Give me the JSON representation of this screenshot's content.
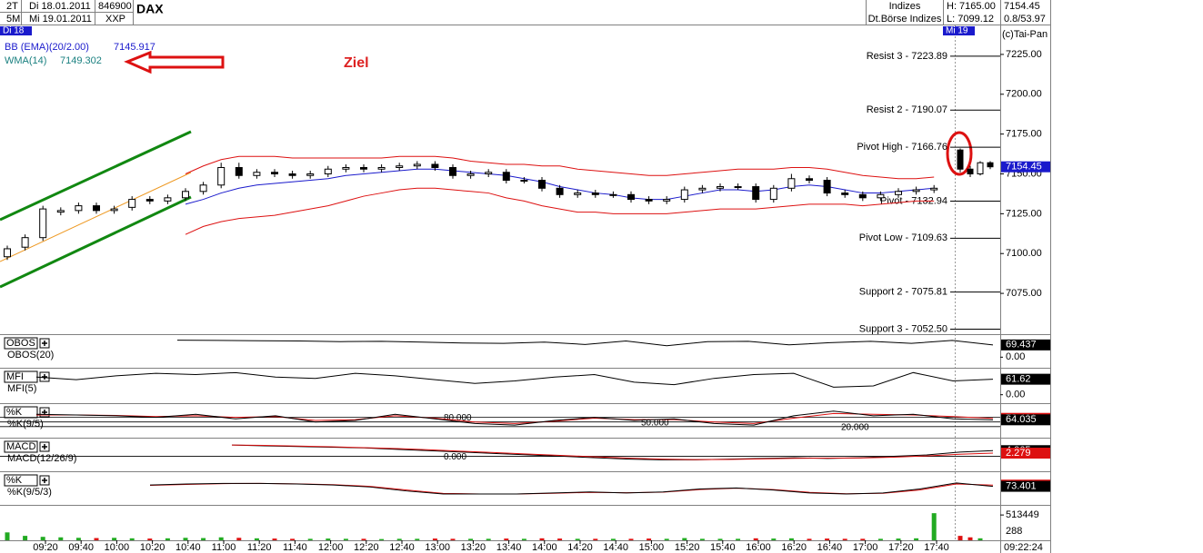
{
  "header": {
    "period": "2T",
    "interval": "5M",
    "date_from": "Di 18.01.2011",
    "date_to": "Mi 19.01.2011",
    "code": "846900",
    "exchange_code": "XXP",
    "group": "Indizes",
    "group_full": "Dt.Börse Indizes",
    "high": "H: 7165.00",
    "low": "L: 7099.12",
    "last": "7154.45",
    "change": "0.8/53.97",
    "copyright": "(c)Tai-Pan",
    "clock": "09:22:24"
  },
  "chart_data": {
    "type": "candlestick",
    "title": "DAX",
    "annotation": "Ziel",
    "legend": [
      {
        "name": "BB (EMA)(20/2.00)",
        "value": 7145.917,
        "color": "#1a1acc"
      },
      {
        "name": "WMA(14)",
        "value": 7149.302,
        "color": "#1a8080"
      }
    ],
    "ylim": [
      7049.4,
      7243.2
    ],
    "yticks": [
      {
        "value": 7225,
        "label": "7225.00"
      },
      {
        "value": 7200,
        "label": "7200.00"
      },
      {
        "value": 7175,
        "label": "7175.00"
      },
      {
        "value": 7150,
        "label": "7150.00"
      },
      {
        "value": 7125,
        "label": "7125.00"
      },
      {
        "value": 7100,
        "label": "7100.00"
      },
      {
        "value": 7075,
        "label": "7075.00"
      }
    ],
    "xticks": [
      "09:20",
      "09:40",
      "10:00",
      "10:20",
      "10:40",
      "11:00",
      "11:20",
      "11:40",
      "12:00",
      "12:20",
      "12:40",
      "13:00",
      "13:20",
      "13:40",
      "14:00",
      "14:20",
      "14:40",
      "15:00",
      "15:20",
      "15:40",
      "16:00",
      "16:20",
      "16:40",
      "17:00",
      "17:20",
      "17:40"
    ],
    "last": 7154.45,
    "last_color": "#1a1acc",
    "sessions": [
      {
        "name": "Di 18",
        "open": [
          7098,
          7104,
          7110,
          7126,
          7127,
          7130,
          7127,
          7129,
          7134,
          7133,
          7135,
          7139,
          7143,
          7154,
          7149,
          7151,
          7150,
          7149,
          7150,
          7153,
          7154,
          7153,
          7154,
          7155,
          7156,
          7154,
          7149,
          7150,
          7151,
          7146,
          7146,
          7141,
          7137,
          7138,
          7137,
          7137,
          7134,
          7133,
          7134,
          7140,
          7141,
          7142,
          7142,
          7134,
          7141,
          7147,
          7146,
          7138,
          7137,
          7135,
          7137,
          7139,
          7140
        ],
        "high": [
          7105,
          7112,
          7130,
          7129,
          7132,
          7132,
          7130,
          7136,
          7136,
          7137,
          7141,
          7145,
          7157,
          7157,
          7153,
          7153,
          7152,
          7152,
          7155,
          7156,
          7156,
          7156,
          7157,
          7158,
          7158,
          7156,
          7152,
          7153,
          7153,
          7148,
          7148,
          7143,
          7140,
          7140,
          7139,
          7139,
          7136,
          7136,
          7142,
          7143,
          7144,
          7144,
          7144,
          7143,
          7150,
          7149,
          7148,
          7140,
          7139,
          7139,
          7141,
          7142,
          7143
        ],
        "low": [
          7096,
          7102,
          7108,
          7124,
          7125,
          7125,
          7125,
          7127,
          7131,
          7131,
          7133,
          7137,
          7141,
          7147,
          7147,
          7148,
          7147,
          7147,
          7148,
          7151,
          7151,
          7151,
          7152,
          7153,
          7152,
          7147,
          7147,
          7148,
          7144,
          7144,
          7139,
          7135,
          7135,
          7135,
          7135,
          7132,
          7131,
          7131,
          7132,
          7138,
          7139,
          7140,
          7132,
          7132,
          7139,
          7144,
          7136,
          7135,
          7133,
          7133,
          7135,
          7137,
          7138
        ],
        "close": [
          7103,
          7110,
          7128,
          7127,
          7130,
          7127,
          7128,
          7134,
          7133,
          7135,
          7139,
          7143,
          7154,
          7149,
          7151,
          7150,
          7149,
          7150,
          7153,
          7154,
          7153,
          7154,
          7155,
          7156,
          7154,
          7149,
          7150,
          7151,
          7146,
          7146,
          7141,
          7137,
          7138,
          7137,
          7137,
          7134,
          7133,
          7134,
          7140,
          7141,
          7142,
          7142,
          7134,
          7141,
          7147,
          7146,
          7138,
          7137,
          7135,
          7137,
          7139,
          7140,
          7141
        ],
        "volume": [
          160000,
          90000,
          70000,
          60000,
          50000,
          45000,
          50000,
          40000,
          35000,
          40000,
          50000,
          45000,
          60000,
          50000,
          40000,
          35000,
          30000,
          30000,
          35000,
          30000,
          30000,
          25000,
          30000,
          30000,
          35000,
          30000,
          30000,
          30000,
          35000,
          30000,
          40000,
          35000,
          30000,
          30000,
          30000,
          30000,
          35000,
          30000,
          45000,
          30000,
          30000,
          30000,
          40000,
          35000,
          40000,
          30000,
          35000,
          30000,
          30000,
          30000,
          35000,
          40000,
          550000
        ]
      },
      {
        "name": "Mi 19",
        "open": [
          7165,
          7153,
          7150,
          7157
        ],
        "high": [
          7166,
          7155,
          7158,
          7158
        ],
        "low": [
          7151,
          7148,
          7149,
          7153
        ],
        "close": [
          7153,
          7150,
          7157,
          7154.45
        ],
        "volume": [
          90000,
          60000,
          40000,
          288
        ]
      }
    ],
    "overlays": [
      {
        "color": "#dd1111",
        "values": [
          null,
          null,
          null,
          null,
          null,
          null,
          null,
          null,
          null,
          null,
          7150,
          7155,
          7159,
          7161,
          7161,
          7161,
          7160,
          7160,
          7160,
          7160,
          7160,
          7160,
          7161,
          7161,
          7161,
          7160,
          7158,
          7157,
          7156,
          7156,
          7155,
          7155,
          7153,
          7152,
          7151,
          7150,
          7149,
          7149,
          7150,
          7151,
          7152,
          7153,
          7153,
          7153,
          7154,
          7154,
          7153,
          7151,
          7149,
          7148,
          7147,
          7147,
          7148
        ]
      },
      {
        "color": "#dd1111",
        "values": [
          null,
          null,
          null,
          null,
          null,
          null,
          null,
          null,
          null,
          null,
          7112,
          7117,
          7120,
          7122,
          7123,
          7124,
          7126,
          7128,
          7130,
          7133,
          7136,
          7138,
          7140,
          7141,
          7141,
          7140,
          7139,
          7138,
          7135,
          7133,
          7130,
          7128,
          7126,
          7126,
          7125,
          7125,
          7125,
          7125,
          7126,
          7127,
          7128,
          7128,
          7128,
          7129,
          7130,
          7131,
          7131,
          7131,
          7130,
          7131,
          7132,
          7133,
          7133
        ]
      },
      {
        "color": "#1a1acc",
        "values": [
          null,
          null,
          null,
          null,
          null,
          null,
          null,
          null,
          null,
          null,
          7131,
          7134,
          7138,
          7141,
          7143,
          7144,
          7145,
          7146,
          7147,
          7149,
          7150,
          7151,
          7152,
          7153,
          7153,
          7152,
          7151,
          7150,
          7149,
          7147,
          7145,
          7142,
          7140,
          7138,
          7137,
          7135,
          7134,
          7134,
          7136,
          7138,
          7140,
          7140,
          7139,
          7140,
          7142,
          7143,
          7142,
          7140,
          7138,
          7138,
          7139,
          7140,
          7141
        ]
      }
    ],
    "levels": [
      {
        "label": "Resist 3 - 7223.89",
        "value": 7223.89
      },
      {
        "label": "Resist 2 - 7190.07",
        "value": 7190.07
      },
      {
        "label": "Pivot High - 7166.76",
        "value": 7166.76
      },
      {
        "label": "Pivot - 7132.94",
        "value": 7132.94
      },
      {
        "label": "Pivot Low - 7109.63",
        "value": 7109.63
      },
      {
        "label": "Support 2 - 7075.81",
        "value": 7075.81
      },
      {
        "label": "Support 3 - 7052.50",
        "value": 7052.5
      }
    ],
    "panels": [
      {
        "title": "OBOS",
        "ylim": [
          -60,
          120
        ],
        "yticks": [
          {
            "value": 0,
            "label": "0.00"
          }
        ],
        "levels": [],
        "series": [
          {
            "name": "OBOS(20)",
            "color": "#000000",
            "values": [
              96,
              95,
              93,
              92,
              88,
              90,
              85,
              80,
              78,
              85,
              72,
              92,
              65,
              88,
              90,
              70,
              82,
              90,
              78,
              95,
              69.437
            ]
          }
        ]
      },
      {
        "title": "MFI",
        "ylim": [
          -30,
          100
        ],
        "yticks": [
          {
            "value": 0,
            "label": "0.00"
          }
        ],
        "levels": [],
        "series": [
          {
            "name": "MFI(5)",
            "color": "#000000",
            "values": [
              70,
              60,
              75,
              85,
              80,
              88,
              70,
              65,
              85,
              75,
              60,
              45,
              55,
              70,
              80,
              50,
              40,
              65,
              80,
              85,
              30,
              35,
              88,
              55,
              61.62
            ]
          }
        ]
      },
      {
        "title": "%K",
        "ylim": [
          -40,
          160
        ],
        "yticks": [],
        "levels": [
          {
            "value": 80,
            "label": "80.000"
          },
          {
            "value": 50,
            "label": "50.000"
          },
          {
            "value": 20,
            "label": "20.000"
          }
        ],
        "series": [
          {
            "color": "#dd1111",
            "values": [
              95,
              95,
              92,
              85,
              90,
              80,
              85,
              60,
              65,
              90,
              75,
              50,
              40,
              55,
              75,
              65,
              65,
              50,
              40,
              75,
              105,
              100,
              95,
              85,
              73.401
            ]
          },
          {
            "name": "%K(9/5)",
            "color": "#000000",
            "values": [
              100,
              95,
              90,
              80,
              100,
              70,
              90,
              50,
              60,
              100,
              70,
              40,
              30,
              60,
              80,
              60,
              70,
              40,
              30,
              90,
              120,
              90,
              100,
              70,
              64.035
            ]
          }
        ]
      },
      {
        "title": "MACD",
        "ylim": [
          -10,
          12
        ],
        "yticks": [],
        "levels": [
          {
            "value": 0,
            "label": "0.000"
          }
        ],
        "series": [
          {
            "name": "MACD(12/26/9)",
            "color": "#000000",
            "values": [
              8,
              7.5,
              7,
              6.5,
              6,
              5,
              4,
              3,
              2,
              1,
              0,
              -1,
              -2,
              -2.5,
              -2.5,
              -2,
              -1.5,
              -1,
              -1.5,
              -1,
              0,
              1,
              3,
              4.065
            ]
          },
          {
            "color": "#dd1111",
            "values": [
              8,
              7.8,
              7.3,
              6.8,
              6.2,
              5.5,
              4.6,
              3.6,
              2.6,
              1.6,
              0.6,
              -0.4,
              -1.3,
              -2,
              -2.3,
              -2.2,
              -1.8,
              -1.4,
              -1.3,
              -1.2,
              -0.6,
              0.3,
              1.5,
              2.279
            ]
          }
        ]
      },
      {
        "title": "%K",
        "ylim": [
          -20,
          140
        ],
        "yticks": [],
        "levels": [],
        "series": [
          {
            "color": "#dd1111",
            "values": [
              78,
              83,
              87,
              88,
              86,
              82,
              73,
              55,
              38,
              35,
              35,
              38,
              43,
              41,
              44,
              57,
              64,
              57,
              43,
              36,
              38,
              55,
              85,
              79.602
            ]
          },
          {
            "name": "%K(9/5/3)",
            "color": "#000000",
            "values": [
              80,
              85,
              88,
              88,
              85,
              80,
              70,
              50,
              35,
              35,
              35,
              40,
              45,
              40,
              45,
              60,
              65,
              55,
              40,
              35,
              40,
              60,
              90,
              73.401
            ]
          }
        ]
      }
    ],
    "volume": {
      "ylim": [
        0,
        700000
      ],
      "yticks": [
        513449
      ],
      "up_color": "#22aa22",
      "down_color": "#dd1111"
    }
  }
}
